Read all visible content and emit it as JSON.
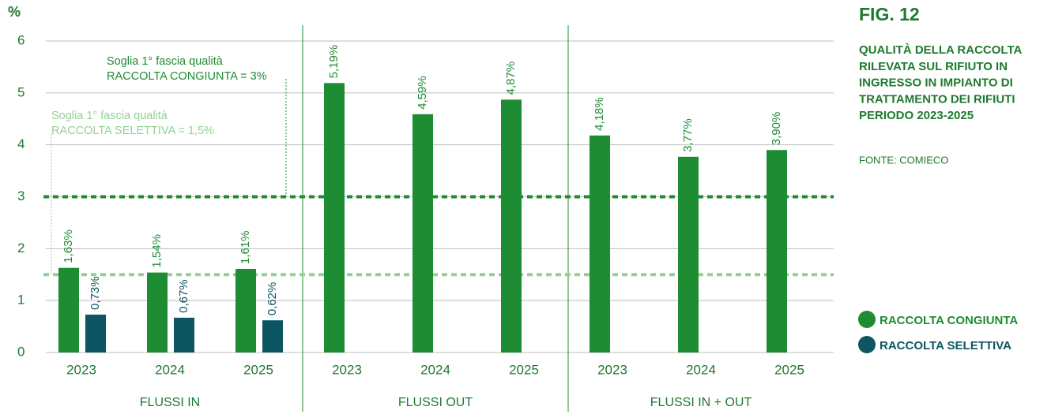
{
  "chart_data": {
    "type": "bar",
    "title": "FIG. 12",
    "subtitle": [
      "QUALITÀ DELLA RACCOLTA",
      "RILEVATA SUL RIFIUTO IN",
      "INGRESSO IN IMPIANTO DI",
      "TRATTAMENTO DEI RIFIUTI",
      "PERIODO 2023-2025"
    ],
    "source": "FONTE: COMIECO",
    "y_label": "%",
    "groups": [
      {
        "name": "FLUSSI IN",
        "categories": [
          "2023",
          "2024",
          "2025"
        ]
      },
      {
        "name": "FLUSSI OUT",
        "categories": [
          "2023",
          "2024",
          "2025"
        ]
      },
      {
        "name": "FLUSSI IN + OUT",
        "categories": [
          "2023",
          "2024",
          "2025"
        ]
      }
    ],
    "series": [
      {
        "name": "RACCOLTA CONGIUNTA",
        "color": "#1e8c32",
        "values": [
          1.63,
          1.54,
          1.61,
          5.19,
          4.59,
          4.87,
          4.18,
          3.77,
          3.9
        ],
        "value_labels": [
          "1,63%",
          "1,54%",
          "1,61%",
          "5,19%",
          "4,59%",
          "4,87%",
          "4,18%",
          "3,77%",
          "3,90%"
        ]
      },
      {
        "name": "RACCOLTA SELETTIVA",
        "color": "#0b5660",
        "values": [
          0.73,
          0.67,
          0.62,
          null,
          null,
          null,
          null,
          null,
          null
        ],
        "value_labels": [
          "0,73%",
          "0,67%",
          "0,62%",
          null,
          null,
          null,
          null,
          null,
          null
        ]
      }
    ],
    "thresholds": [
      {
        "value": 3,
        "label": [
          "Soglia 1° fascia qualità",
          "RACCOLTA CONGIUNTA = 3%"
        ],
        "color": "#1e8c32"
      },
      {
        "value": 1.5,
        "label": [
          "Soglia 1° fascia qualità",
          "RACCOLTA SELETTIVA = 1,5%"
        ],
        "color": "#93d193"
      }
    ],
    "ylim": [
      0,
      6
    ],
    "yticks": [
      0,
      1,
      2,
      3,
      4,
      5,
      6
    ],
    "grid": true,
    "legend": "right"
  }
}
